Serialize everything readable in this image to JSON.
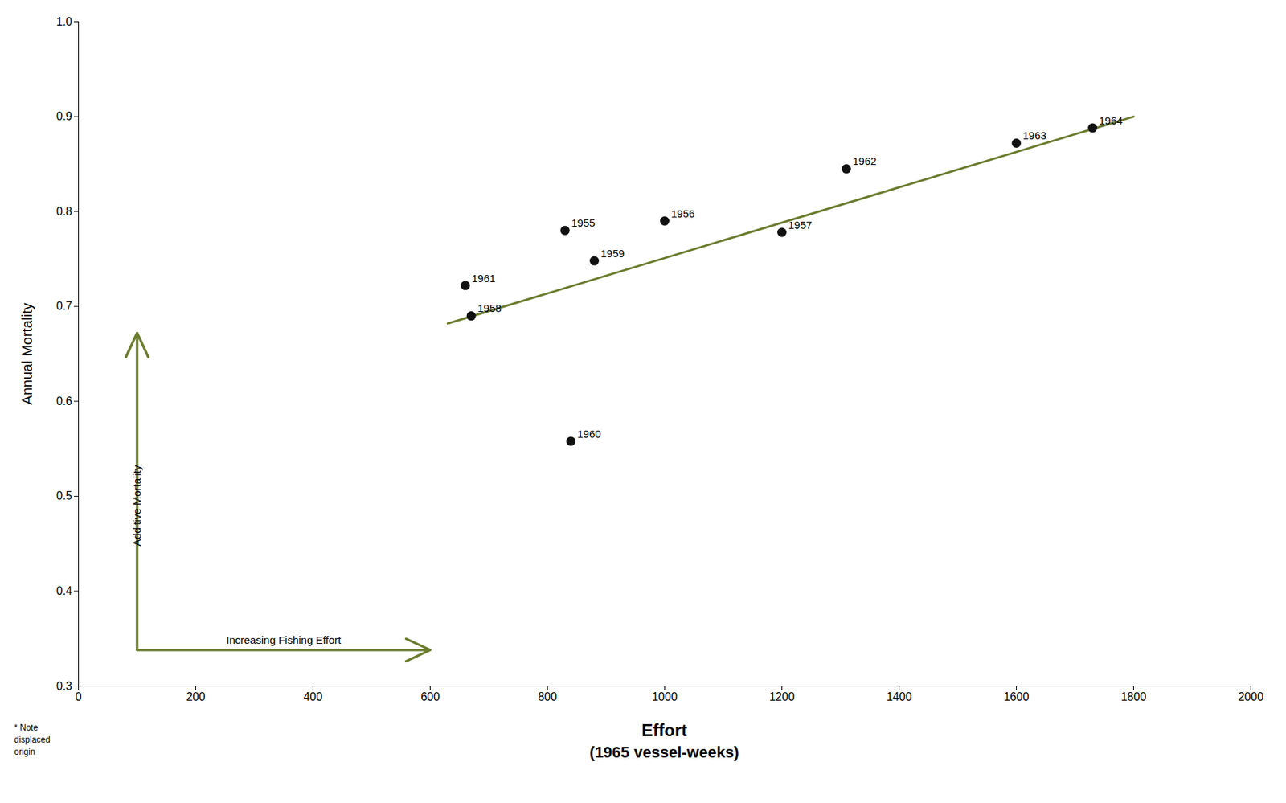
{
  "chart_data": {
    "type": "scatter",
    "xlabel": "Effort",
    "xlabel_sub": "(1965 vessel-weeks)",
    "ylabel": "Annual Mortality",
    "series": [
      {
        "type": "scatter",
        "color": "#111111",
        "x": [
          830,
          1000,
          1200,
          670,
          880,
          840,
          660,
          1310,
          1600,
          1730
        ],
        "values": [
          0.78,
          0.79,
          0.778,
          0.69,
          0.748,
          0.558,
          0.722,
          0.845,
          0.872,
          0.888
        ],
        "labels": [
          "1955",
          "1956",
          "1957",
          "1958",
          "1959",
          "1960",
          "1961",
          "1962",
          "1963",
          "1964"
        ]
      },
      {
        "type": "line",
        "color": "#6b7c2e",
        "x": [
          630,
          1800
        ],
        "values": [
          0.682,
          0.9
        ]
      }
    ],
    "annotations": [
      {
        "text": "Additive Mortality",
        "x": [
          100,
          100
        ],
        "y": [
          0.338,
          0.672
        ],
        "color": "#6b7c2e"
      },
      {
        "text": "Increasing Fishing Effort",
        "x": [
          100,
          600
        ],
        "y": [
          0.338,
          0.338
        ],
        "color": "#6b7c2e"
      }
    ],
    "note": "* Note\ndisplaced\norigin",
    "xlim": [
      0,
      2000
    ],
    "ylim": [
      0.3,
      1.0
    ],
    "xticks": [
      0,
      200,
      400,
      600,
      800,
      1000,
      1200,
      1400,
      1600,
      1800,
      2000
    ],
    "yticks": [
      0.3,
      0.4,
      0.5,
      0.6,
      0.7,
      0.8,
      0.9,
      {
        "value": 1.0,
        "label": "1.0"
      }
    ]
  }
}
